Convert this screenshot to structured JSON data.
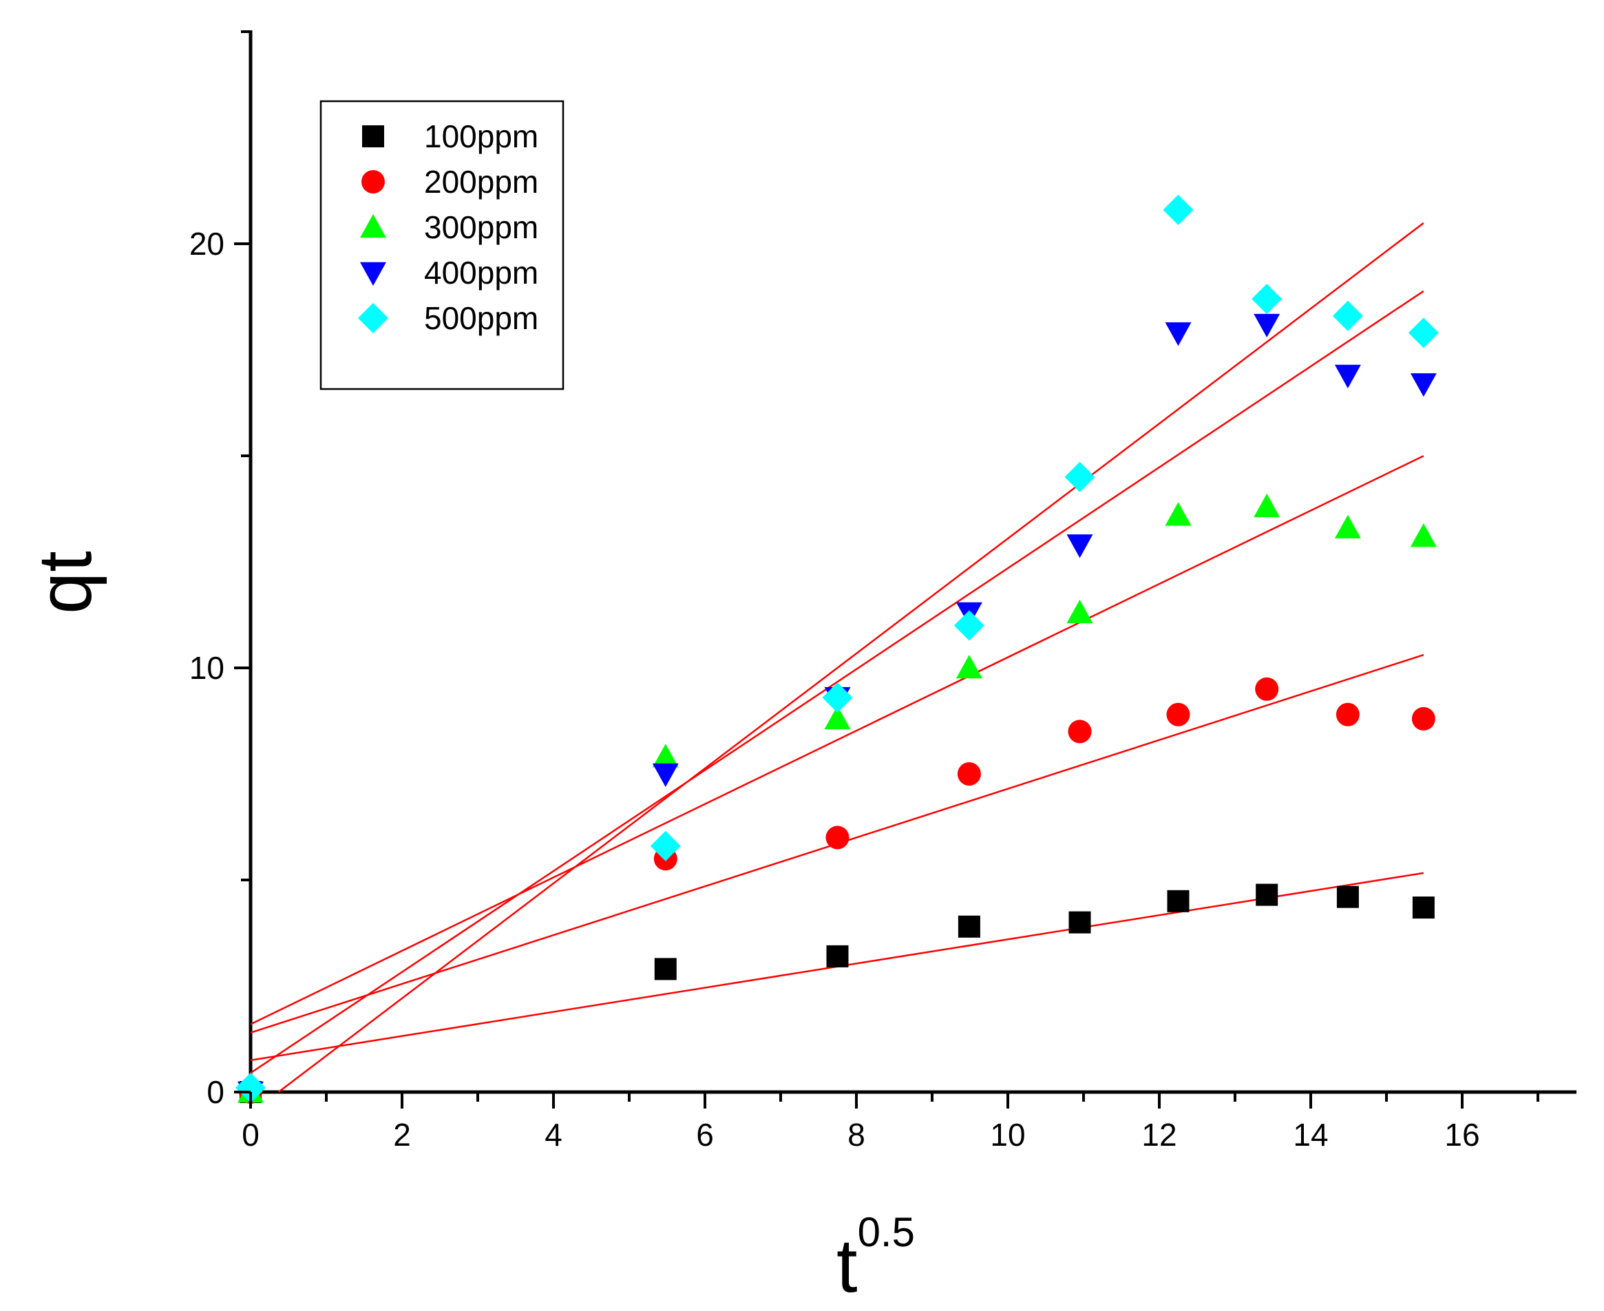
{
  "chart_data": {
    "type": "scatter",
    "xlabel": "t",
    "xlabel_superscript": "0.5",
    "ylabel": "qt",
    "xlim": [
      0,
      17.5
    ],
    "ylim": [
      0,
      25
    ],
    "x_ticks": [
      0,
      2,
      4,
      6,
      8,
      10,
      12,
      14,
      16
    ],
    "x_minor_ticks": [
      1,
      3,
      5,
      7,
      9,
      11,
      13,
      15,
      17
    ],
    "y_ticks": [
      0,
      10,
      20
    ],
    "y_minor_ticks": [
      5,
      15,
      25
    ],
    "grid": false,
    "legend_position": "top-left",
    "x": [
      0,
      5.48,
      7.75,
      9.49,
      10.95,
      12.25,
      13.42,
      14.49,
      15.49
    ],
    "series": [
      {
        "name": "100ppm",
        "marker": "square",
        "color": "#000000",
        "values": [
          0,
          2.9,
          3.2,
          3.9,
          4.0,
          4.5,
          4.65,
          4.6,
          4.35
        ],
        "fit": {
          "intercept": 0.75,
          "slope": 0.285,
          "x_end": 15.49,
          "color": "#ff0000"
        }
      },
      {
        "name": "200ppm",
        "marker": "circle",
        "color": "#ff0000",
        "values": [
          0,
          5.5,
          6.0,
          7.5,
          8.5,
          8.9,
          9.5,
          8.9,
          8.8
        ],
        "fit": {
          "intercept": 1.4,
          "slope": 0.575,
          "x_end": 15.49,
          "color": "#ff0000"
        }
      },
      {
        "name": "300ppm",
        "marker": "triangle-up",
        "color": "#00ff00",
        "values": [
          0,
          7.9,
          8.8,
          10.0,
          11.3,
          13.6,
          13.8,
          13.3,
          13.1
        ],
        "fit": {
          "intercept": 1.6,
          "slope": 0.865,
          "x_end": 15.49,
          "color": "#ff0000"
        }
      },
      {
        "name": "400ppm",
        "marker": "triangle-down",
        "color": "#0000ff",
        "values": [
          0,
          7.5,
          9.3,
          11.3,
          12.9,
          17.9,
          18.1,
          16.9,
          16.7
        ],
        "fit": {
          "intercept": 0.45,
          "slope": 1.19,
          "x_end": 15.49,
          "color": "#ff0000"
        }
      },
      {
        "name": "500ppm",
        "marker": "diamond",
        "color": "#00ffff",
        "values": [
          0.1,
          5.8,
          9.3,
          11.0,
          14.5,
          20.8,
          18.7,
          18.3,
          17.9
        ],
        "fit": {
          "intercept": -0.5,
          "slope": 1.355,
          "x_end": 15.49,
          "color": "#ff0000"
        }
      }
    ]
  }
}
